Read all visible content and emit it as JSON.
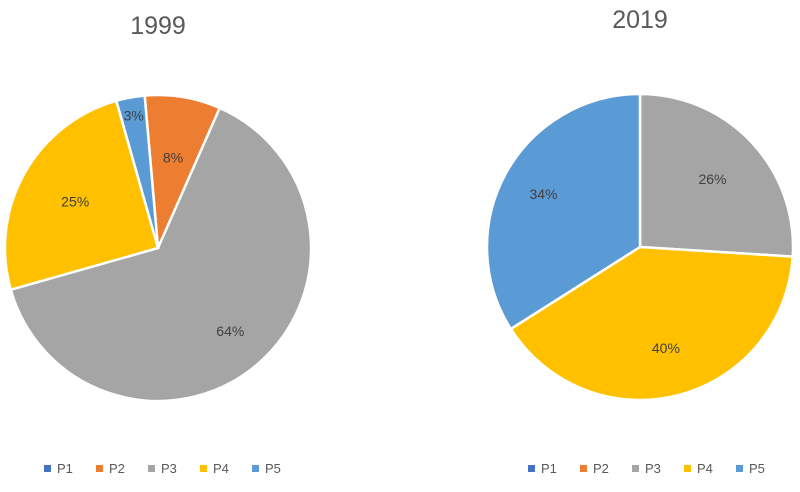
{
  "chart_data": [
    {
      "type": "pie",
      "title": "1999",
      "slices": [
        {
          "name": "P1",
          "value": 0,
          "label": "",
          "color": "#4472C4"
        },
        {
          "name": "P2",
          "value": 8,
          "label": "8%",
          "color": "#ED7D31"
        },
        {
          "name": "P3",
          "value": 64,
          "label": "64%",
          "color": "#A5A5A5"
        },
        {
          "name": "P4",
          "value": 25,
          "label": "25%",
          "color": "#FFC000"
        },
        {
          "name": "P5",
          "value": 3,
          "label": "3%",
          "color": "#5B9BD5"
        }
      ],
      "legend": [
        "P1",
        "P2",
        "P3",
        "P4",
        "P5"
      ],
      "legend_position": "bottom"
    },
    {
      "type": "pie",
      "title": "2019",
      "slices": [
        {
          "name": "P1",
          "value": 0,
          "label": "",
          "color": "#4472C4"
        },
        {
          "name": "P2",
          "value": 0,
          "label": "",
          "color": "#ED7D31"
        },
        {
          "name": "P3",
          "value": 26,
          "label": "26%",
          "color": "#A5A5A5"
        },
        {
          "name": "P4",
          "value": 40,
          "label": "40%",
          "color": "#FFC000"
        },
        {
          "name": "P5",
          "value": 34,
          "label": "34%",
          "color": "#5B9BD5"
        }
      ],
      "legend": [
        "P1",
        "P2",
        "P3",
        "P4",
        "P5"
      ],
      "legend_position": "bottom"
    }
  ]
}
